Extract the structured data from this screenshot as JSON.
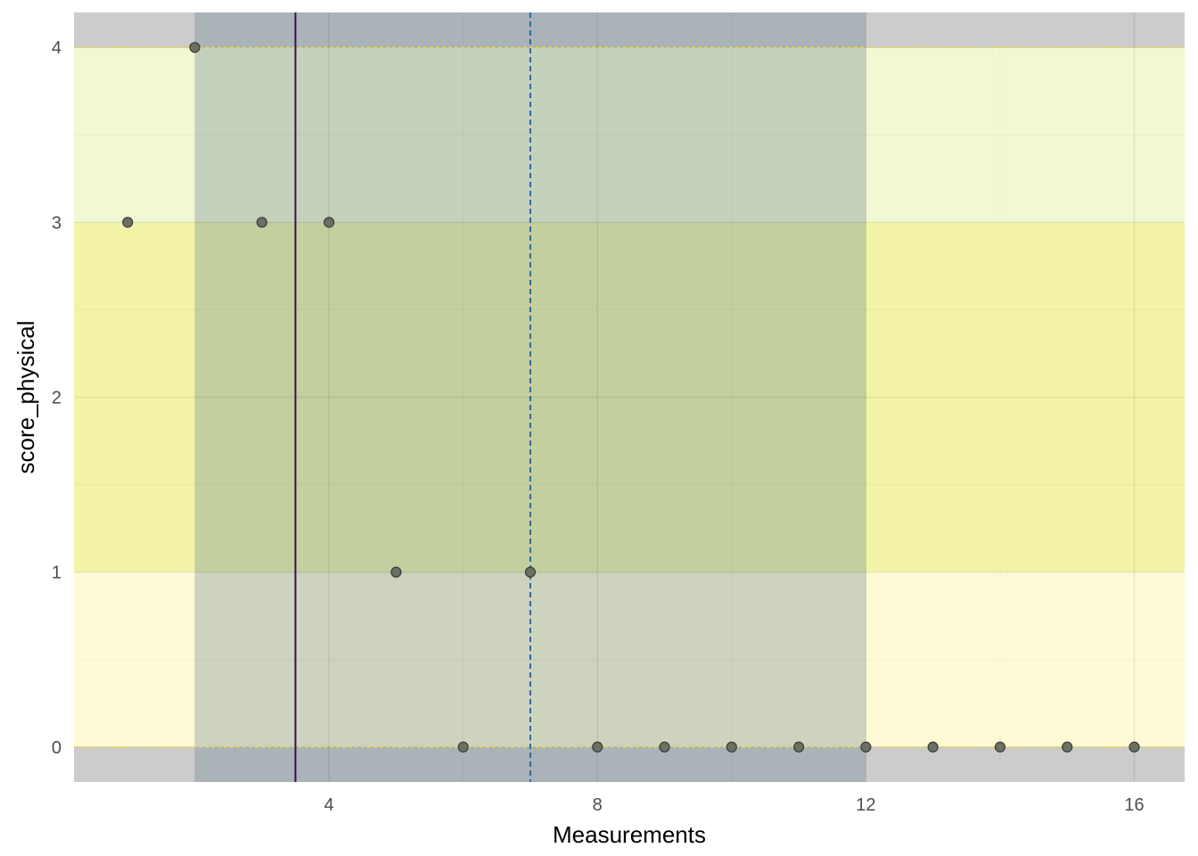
{
  "chart_data": {
    "type": "scatter",
    "xlabel": "Measurements",
    "ylabel": "score_physical",
    "xlim": [
      0.2,
      16.75
    ],
    "ylim": [
      -0.2,
      4.2
    ],
    "x_ticks": [
      4,
      8,
      12,
      16
    ],
    "x_minor_ticks": [
      2,
      6,
      10,
      14
    ],
    "y_ticks": [
      0,
      1,
      2,
      3,
      4
    ],
    "y_minor_ticks": [
      0.5,
      1.5,
      2.5,
      3.5
    ],
    "grid": true,
    "points": {
      "x": [
        1,
        2,
        3,
        4,
        5,
        6,
        7,
        8,
        9,
        10,
        11,
        12,
        13,
        14,
        15,
        16
      ],
      "y": [
        3,
        4,
        3,
        3,
        1,
        0,
        1,
        0,
        0,
        0,
        0,
        0,
        0,
        0,
        0,
        0
      ]
    },
    "y_bands": [
      {
        "from": 3,
        "to": 4,
        "color": "#f2f8d3"
      },
      {
        "from": 1,
        "to": 3,
        "color": "#f3f4a8"
      },
      {
        "from": 0,
        "to": 1,
        "color": "#fffad6"
      },
      {
        "from": 4,
        "to": 4.2,
        "color": "#cccccc"
      },
      {
        "from": -0.2,
        "to": 0,
        "color": "#cccccc"
      }
    ],
    "x_band": {
      "from": 2,
      "to": 12,
      "color": "#5b7c8c"
    },
    "y_limit_lines": [
      0,
      4
    ],
    "y_limit_line_color": "#e6d84a",
    "vline_solid": {
      "x": 3.5,
      "color": "#3a0f4f"
    },
    "vline_dashed": {
      "x": 7,
      "color": "#2f6aa0"
    },
    "point_fill": "#6b7062",
    "point_stroke": "#3a3a3a"
  }
}
